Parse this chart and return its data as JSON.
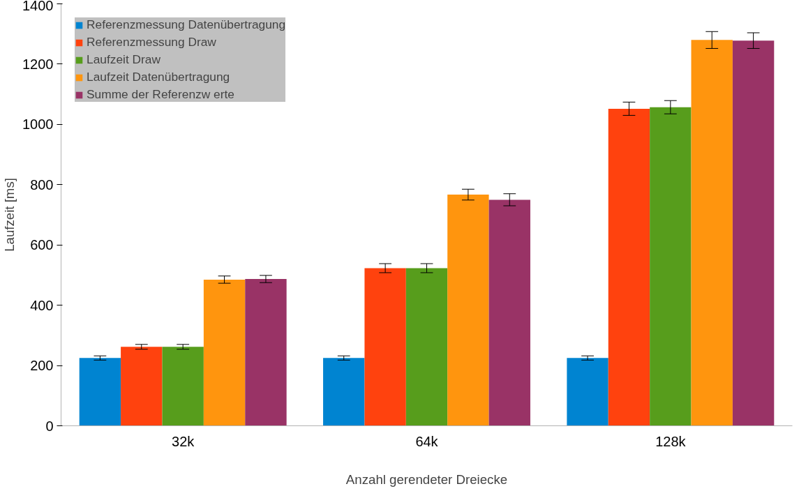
{
  "chart_data": {
    "type": "bar",
    "xlabel": "Anzahl gerendeter Dreiecke",
    "ylabel": "Laufzeit [ms]",
    "categories": [
      "32k",
      "64k",
      "128k"
    ],
    "ylim": [
      0,
      1400
    ],
    "yticks": [
      0,
      200,
      400,
      600,
      800,
      1000,
      1200,
      1400
    ],
    "grid": false,
    "legend": "top left",
    "series": [
      {
        "name": "Referenzmessung Datenübertragung",
        "color": "#0084d1",
        "values": [
          225,
          225,
          225
        ],
        "errors": [
          7,
          7,
          7
        ]
      },
      {
        "name": "Referenzmessung Draw",
        "color": "#ff420e",
        "values": [
          262,
          523,
          1052
        ],
        "errors": [
          8,
          15,
          22
        ]
      },
      {
        "name": "Laufzeit Draw",
        "color": "#579d1c",
        "values": [
          262,
          523,
          1057
        ],
        "errors": [
          8,
          15,
          22
        ]
      },
      {
        "name": "Laufzeit Datenübertragung",
        "color": "#ff950e",
        "values": [
          485,
          767,
          1280
        ],
        "errors": [
          12,
          18,
          28
        ]
      },
      {
        "name": "Summe der Referenzw erte",
        "color": "#993366",
        "values": [
          487,
          750,
          1278
        ],
        "errors": [
          12,
          20,
          26
        ]
      }
    ]
  }
}
